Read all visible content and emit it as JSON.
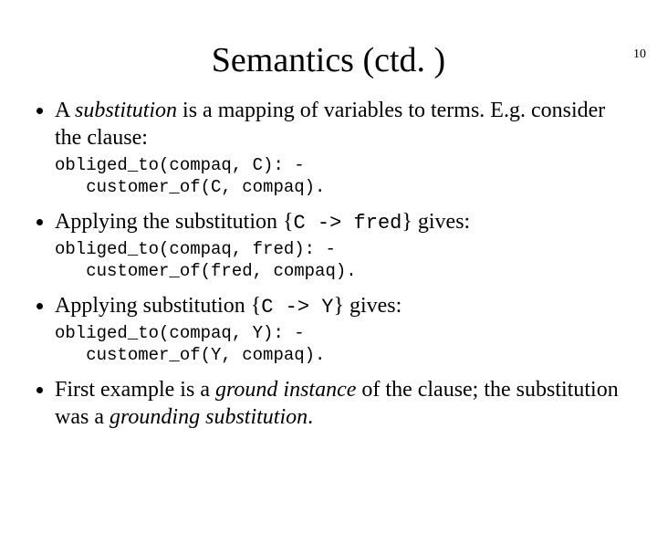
{
  "page_number": "10",
  "title": "Semantics (ctd. )",
  "bullets": {
    "b1_pre": "A ",
    "b1_em": "substitution",
    "b1_post": " is a mapping of variables to terms. E.g. consider the clause:",
    "code1_l1": "obliged_to(compaq, C): -",
    "code1_l2": "   customer_of(C, compaq).",
    "b2_pre": "Applying the substitution {",
    "b2_code": "C -> fred",
    "b2_post": "} gives:",
    "code2_l1": "obliged_to(compaq, fred): -",
    "code2_l2": "   customer_of(fred, compaq).",
    "b3_pre": "Applying substitution {",
    "b3_code": "C -> Y",
    "b3_post": "} gives:",
    "code3_l1": "obliged_to(compaq, Y): -",
    "code3_l2": "   customer_of(Y, compaq).",
    "b4_pre": "First example is a ",
    "b4_em1": "ground instance",
    "b4_mid": " of the clause; the substitution was a ",
    "b4_em2": "grounding substitution",
    "b4_post": "."
  }
}
